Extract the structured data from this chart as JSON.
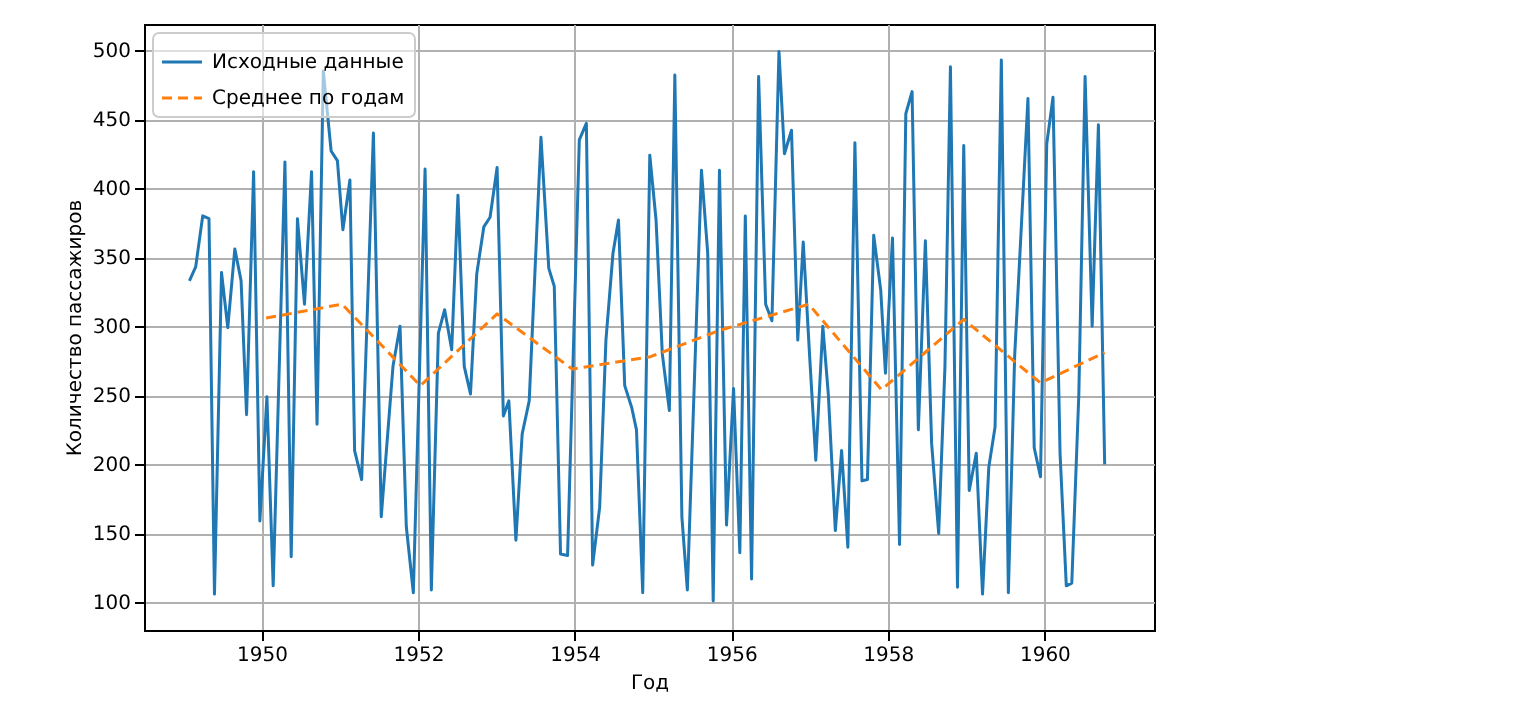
{
  "chart_data": {
    "type": "line",
    "xlabel": "Год",
    "ylabel": "Количество пассажиров",
    "xlim": [
      1948.5,
      1961.4
    ],
    "ylim": [
      80,
      519
    ],
    "xticks": [
      1950,
      1952,
      1954,
      1956,
      1958,
      1960
    ],
    "yticks": [
      100,
      150,
      200,
      250,
      300,
      350,
      400,
      450,
      500
    ],
    "grid": true,
    "legend": "top left",
    "marker": "none",
    "series": [
      {
        "name": "Исходные данные",
        "color": "#1f77b4",
        "line_style": "solid",
        "x": [
          1949.08,
          1949.16,
          1949.25,
          1949.33,
          1949.4,
          1949.49,
          1949.57,
          1949.66,
          1949.74,
          1949.81,
          1949.9,
          1949.98,
          1950.07,
          1950.15,
          1950.3,
          1950.38,
          1950.46,
          1950.55,
          1950.64,
          1950.71,
          1950.79,
          1950.89,
          1950.97,
          1951.04,
          1951.13,
          1951.19,
          1951.28,
          1951.43,
          1951.53,
          1951.68,
          1951.77,
          1951.85,
          1951.94,
          1952.09,
          1952.17,
          1952.26,
          1952.34,
          1952.43,
          1952.51,
          1952.59,
          1952.67,
          1952.75,
          1952.84,
          1952.92,
          1953.01,
          1953.09,
          1953.16,
          1953.25,
          1953.33,
          1953.42,
          1953.57,
          1953.67,
          1953.74,
          1953.82,
          1953.91,
          1954.06,
          1954.15,
          1954.23,
          1954.32,
          1954.4,
          1954.49,
          1954.56,
          1954.64,
          1954.73,
          1954.79,
          1954.87,
          1954.96,
          1955.04,
          1955.12,
          1955.21,
          1955.28,
          1955.37,
          1955.44,
          1955.62,
          1955.7,
          1955.77,
          1955.85,
          1955.94,
          1956.03,
          1956.11,
          1956.18,
          1956.26,
          1956.35,
          1956.44,
          1956.52,
          1956.61,
          1956.68,
          1956.77,
          1956.85,
          1956.92,
          1957.0,
          1957.08,
          1957.17,
          1957.24,
          1957.33,
          1957.41,
          1957.49,
          1957.58,
          1957.67,
          1957.74,
          1957.82,
          1957.91,
          1957.97,
          1958.06,
          1958.15,
          1958.23,
          1958.31,
          1958.39,
          1958.48,
          1958.56,
          1958.65,
          1958.73,
          1958.8,
          1958.89,
          1958.97,
          1959.04,
          1959.13,
          1959.21,
          1959.29,
          1959.37,
          1959.45,
          1959.54,
          1959.62,
          1959.79,
          1959.87,
          1959.95,
          1960.03,
          1960.11,
          1960.2,
          1960.28,
          1960.35,
          1960.44,
          1960.52,
          1960.61,
          1960.69,
          1960.77
        ],
        "values": [
          333,
          343,
          380,
          378,
          106,
          339,
          299,
          356,
          333,
          236,
          412,
          159,
          249,
          112,
          419,
          133,
          378,
          316,
          412,
          229,
          485,
          427,
          420,
          370,
          406,
          210,
          189,
          440,
          162,
          271,
          300,
          155,
          107,
          414,
          109,
          295,
          312,
          283,
          395,
          271,
          251,
          338,
          372,
          379,
          415,
          235,
          246,
          145,
          222,
          246,
          437,
          342,
          329,
          135,
          134,
          435,
          447,
          127,
          169,
          290,
          353,
          377,
          257,
          241,
          225,
          107,
          424,
          377,
          280,
          239,
          482,
          162,
          109,
          413,
          353,
          101,
          413,
          156,
          255,
          136,
          380,
          117,
          481,
          316,
          304,
          499,
          425,
          442,
          290,
          361,
          280,
          203,
          300,
          251,
          152,
          210,
          140,
          433,
          188,
          189,
          366,
          326,
          266,
          364,
          142,
          454,
          470,
          225,
          362,
          215,
          150,
          271,
          488,
          111,
          431,
          181,
          208,
          106,
          198,
          227,
          493,
          107,
          278,
          465,
          212,
          191,
          432,
          466,
          208,
          112,
          114,
          251,
          481,
          300,
          446,
          200
        ]
      },
      {
        "name": "Среднее по годам",
        "color": "#ff7f0e",
        "line_style": "dashed",
        "x": [
          1950.06,
          1951.03,
          1952.03,
          1953.01,
          1953.97,
          1954.97,
          1955.85,
          1956.99,
          1957.92,
          1958.97,
          1959.95,
          1960.77
        ],
        "values": [
          306,
          316,
          257,
          309,
          269,
          278,
          297,
          316,
          254,
          305,
          259,
          281
        ]
      }
    ]
  }
}
